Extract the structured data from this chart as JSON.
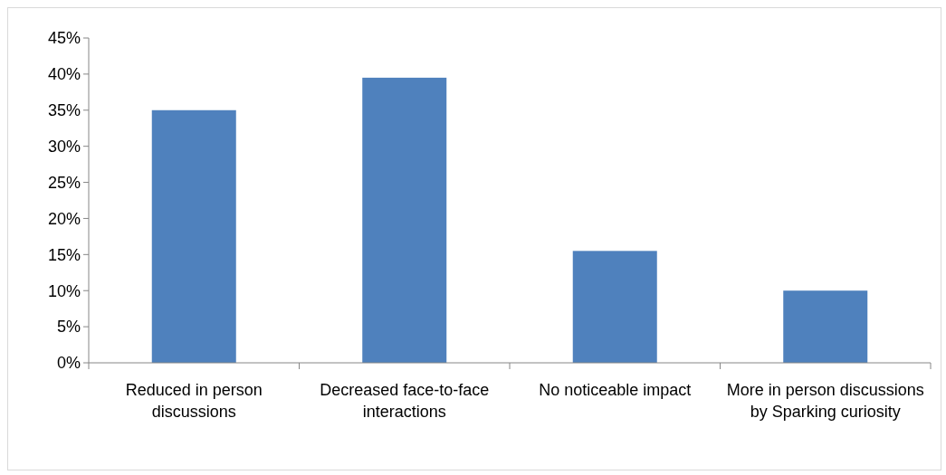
{
  "chart_data": {
    "type": "bar",
    "categories": [
      "Reduced in person discussions",
      "Decreased face-to-face interactions",
      "No noticeable impact",
      "More in person discussions by Sparking curiosity"
    ],
    "values": [
      35,
      39.5,
      15.5,
      10
    ],
    "color": "#4f81bd",
    "ylim": [
      0,
      45
    ],
    "yticks": [
      {
        "value": 0,
        "label": "0%"
      },
      {
        "value": 5,
        "label": "5%"
      },
      {
        "value": 10,
        "label": "10%"
      },
      {
        "value": 15,
        "label": "15%"
      },
      {
        "value": 20,
        "label": "20%"
      },
      {
        "value": 25,
        "label": "25%"
      },
      {
        "value": 30,
        "label": "30%"
      },
      {
        "value": 35,
        "label": "35%"
      },
      {
        "value": 40,
        "label": "40%"
      },
      {
        "value": 45,
        "label": "45%"
      }
    ],
    "grid": false
  }
}
